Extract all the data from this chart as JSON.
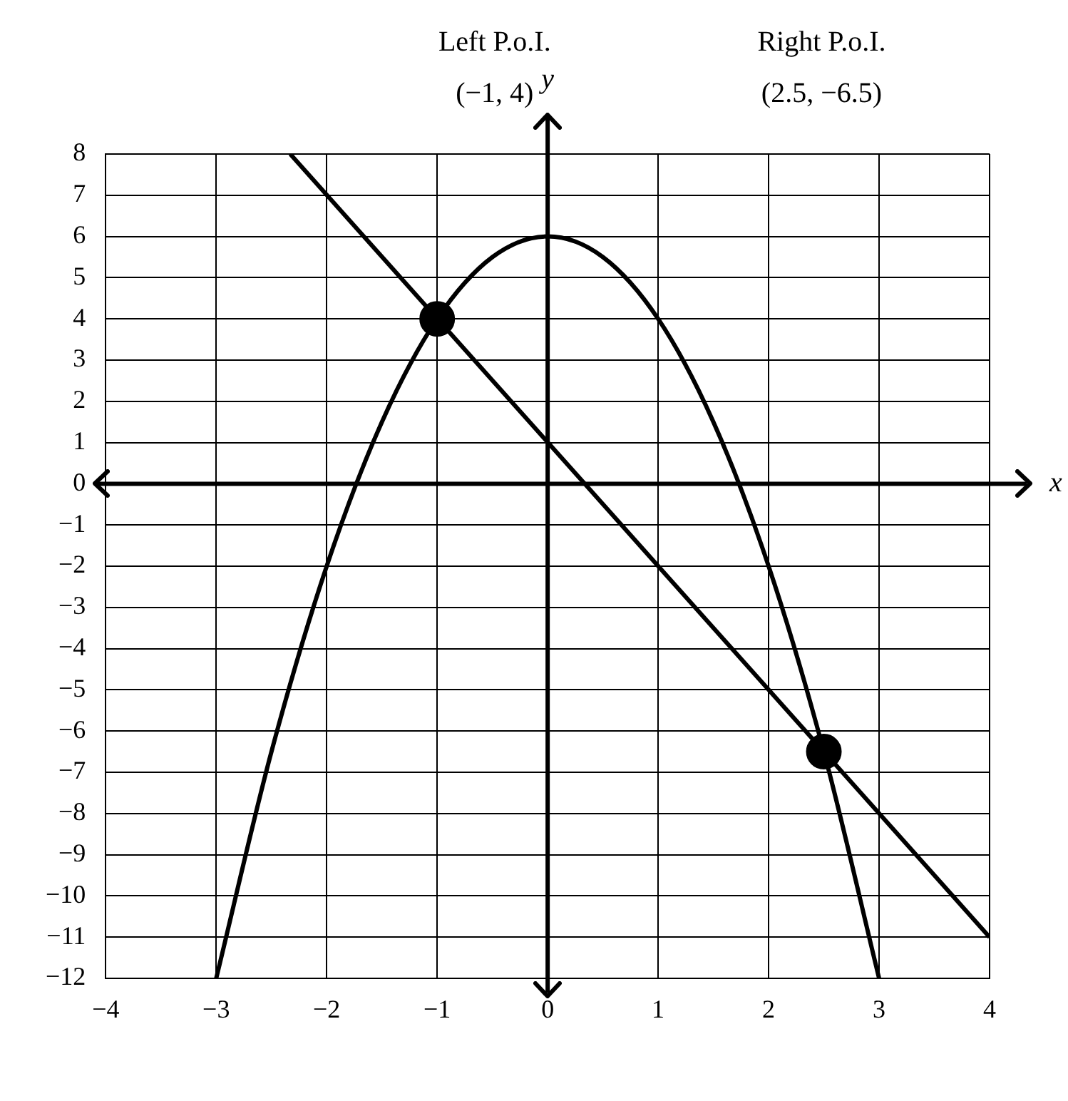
{
  "chart_data": {
    "type": "line",
    "xlabel": "x",
    "ylabel": "y",
    "annotations": [
      "Left P.o.I. (−1, 4)",
      "Right P.o.I. (2.5, −6.5)"
    ],
    "series": [
      {
        "color": "#000000",
        "marker": "none",
        "x": [
          -3,
          -2.5,
          -2,
          -1.5,
          -1,
          -0.5,
          0,
          0.5,
          1,
          1.5,
          2,
          2.5,
          3
        ],
        "values": [
          -12,
          -6.5,
          -2,
          1.5,
          4,
          5.5,
          6,
          5.5,
          4,
          1.5,
          -2,
          -6.5,
          -12
        ]
      },
      {
        "color": "#000000",
        "marker": "none",
        "x": [
          -2.33,
          4
        ],
        "values": [
          8,
          -11
        ]
      },
      {
        "type": "scatter",
        "color": "#000000",
        "marker": "circle",
        "x": [
          -1,
          2.5
        ],
        "values": [
          4,
          -6.5
        ]
      }
    ],
    "xlim": [
      -4,
      4
    ],
    "xticks": [
      -4,
      -3,
      -2,
      -1,
      0,
      1,
      2,
      3,
      4
    ],
    "ylim": [
      -12,
      8
    ],
    "yticks": [
      -12,
      -11,
      -10,
      -9,
      -8,
      -7,
      -6,
      -5,
      -4,
      -3,
      -2,
      -1,
      0,
      1,
      2,
      3,
      4,
      5,
      6,
      7,
      8
    ],
    "grid": true,
    "legend": false,
    "line_style": "solid"
  }
}
